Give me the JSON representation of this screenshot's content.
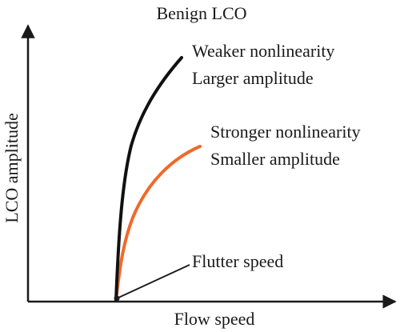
{
  "diagram": {
    "title": "Benign LCO",
    "x_axis_label": "Flow speed",
    "y_axis_label": "LCO amplitude",
    "flutter_label": "Flutter speed",
    "weak_curve": {
      "line1": "Weaker nonlinearity",
      "line2": "Larger amplitude",
      "color": "#111111"
    },
    "strong_curve": {
      "line1": "Stronger nonlinearity",
      "line2": "Smaller amplitude",
      "color": "#ef6a2b"
    },
    "axis_color": "#1a1a1a"
  }
}
